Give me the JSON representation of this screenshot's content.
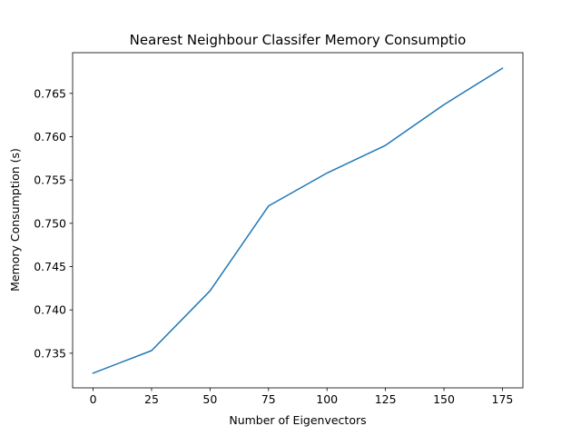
{
  "chart_data": {
    "type": "line",
    "title": "Nearest Neighbour Classifer Memory Consumptio",
    "xlabel": "Number of Eigenvectors",
    "ylabel": "Memory Consumption (s)",
    "x": [
      0,
      25,
      50,
      75,
      100,
      125,
      150,
      175
    ],
    "series": [
      {
        "name": "memory",
        "color": "#1f77b4",
        "values": [
          0.7327,
          0.7353,
          0.7422,
          0.752,
          0.7558,
          0.759,
          0.7637,
          0.7679
        ]
      }
    ],
    "xlim": [
      -8.75,
      183.75
    ],
    "ylim": [
      0.731,
      0.7697
    ],
    "xticks": [
      0,
      25,
      50,
      75,
      100,
      125,
      150,
      175
    ],
    "xtick_labels": [
      "0",
      "25",
      "50",
      "75",
      "100",
      "125",
      "150",
      "175"
    ],
    "yticks": [
      0.735,
      0.74,
      0.745,
      0.75,
      0.755,
      0.76,
      0.765
    ],
    "ytick_labels": [
      "0.735",
      "0.740",
      "0.745",
      "0.750",
      "0.755",
      "0.760",
      "0.765"
    ],
    "grid": false,
    "legend": "none"
  }
}
